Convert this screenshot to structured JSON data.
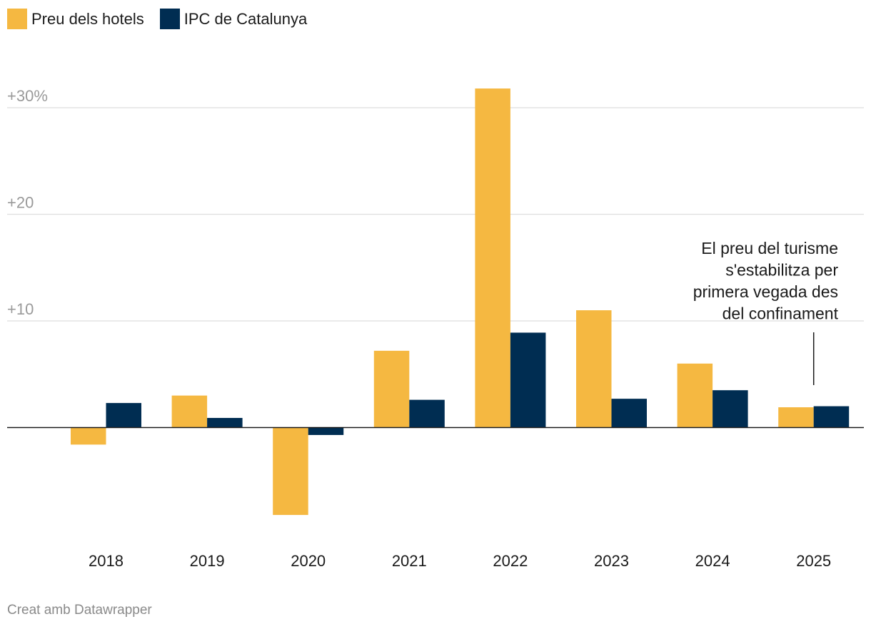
{
  "legend": [
    {
      "label": "Preu dels hotels",
      "color": "#f5b841"
    },
    {
      "label": "IPC de Catalunya",
      "color": "#002d52"
    }
  ],
  "credit": "Creat amb Datawrapper",
  "chart_data": {
    "type": "bar",
    "title": "",
    "xlabel": "",
    "ylabel": "",
    "ylim": [
      -10.5,
      32
    ],
    "y_ticks": [
      {
        "value": 30,
        "label": "+30%"
      },
      {
        "value": 20,
        "label": "+20"
      },
      {
        "value": 10,
        "label": "+10"
      }
    ],
    "grid": true,
    "legend_position": "top-left",
    "categories": [
      "2018",
      "2019",
      "2020",
      "2021",
      "2022",
      "2023",
      "2024",
      "2025"
    ],
    "series": [
      {
        "name": "Preu dels hotels",
        "color": "#f5b841",
        "values": [
          -1.6,
          3.0,
          -8.2,
          7.2,
          31.8,
          11.0,
          6.0,
          1.9
        ]
      },
      {
        "name": "IPC de Catalunya",
        "color": "#002d52",
        "values": [
          2.3,
          0.9,
          -0.7,
          2.6,
          8.9,
          2.7,
          3.5,
          2.0
        ]
      }
    ],
    "annotation": {
      "category": "2025",
      "lines": [
        "El preu del turisme",
        "s'estabilitza per",
        "primera vegada des",
        "del confinament"
      ]
    }
  }
}
